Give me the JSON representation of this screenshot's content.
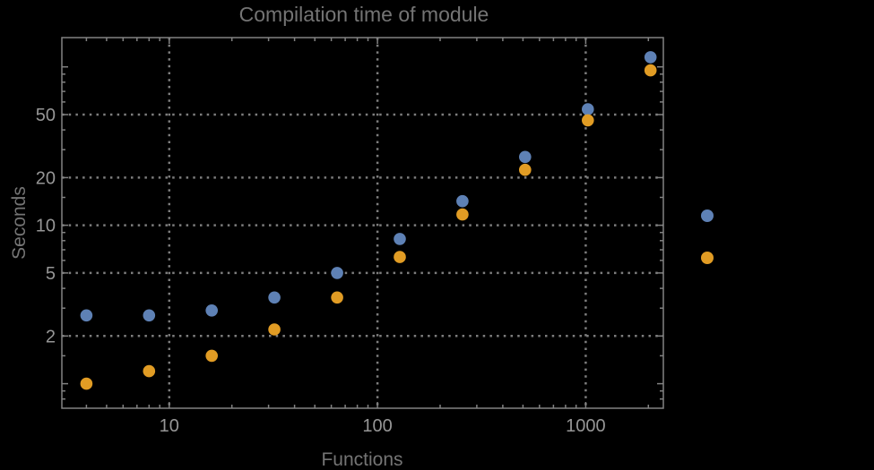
{
  "window": {
    "background": "#000000"
  },
  "chart_data": {
    "type": "scatter",
    "title": "Compilation time of module",
    "xlabel": "Functions",
    "ylabel": "Seconds",
    "x_scale": "log",
    "y_scale": "log",
    "xlim": [
      3.05,
      2360
    ],
    "ylim": [
      0.7,
      153
    ],
    "grid": true,
    "grid_style": "dotted",
    "x_gridlines": [
      10,
      100,
      1000
    ],
    "y_gridlines": [
      50,
      20,
      10,
      5,
      2
    ],
    "x_ticks": [
      {
        "value": 10,
        "label": "10"
      },
      {
        "value": 100,
        "label": "100"
      },
      {
        "value": 1000,
        "label": "1000"
      }
    ],
    "x_minor_ticks": [
      4,
      5,
      6,
      7,
      8,
      9,
      20,
      30,
      40,
      50,
      60,
      70,
      80,
      90,
      200,
      300,
      400,
      500,
      600,
      700,
      800,
      900,
      2000
    ],
    "y_ticks": [
      {
        "value": 100,
        "label": ""
      },
      {
        "value": 50,
        "label": "50"
      },
      {
        "value": 20,
        "label": "20"
      },
      {
        "value": 10,
        "label": "10"
      },
      {
        "value": 5,
        "label": "5"
      },
      {
        "value": 2,
        "label": "2"
      },
      {
        "value": 1,
        "label": ""
      }
    ],
    "y_minor_ticks": [
      0.8,
      0.9,
      1.5,
      3,
      4,
      6,
      7,
      8,
      9,
      15,
      30,
      40,
      60,
      70,
      80,
      90
    ],
    "series": [
      {
        "name": "series-1",
        "color": "#5e81b5",
        "marker": "circle",
        "points": [
          [
            4,
            2.7
          ],
          [
            8,
            2.7
          ],
          [
            16,
            2.9
          ],
          [
            32,
            3.5
          ],
          [
            64,
            5.0
          ],
          [
            128,
            8.2
          ],
          [
            256,
            14.2
          ],
          [
            512,
            27
          ],
          [
            1024,
            54
          ],
          [
            2048,
            115
          ]
        ]
      },
      {
        "name": "series-2",
        "color": "#e19c24",
        "marker": "circle",
        "points": [
          [
            4,
            1.0
          ],
          [
            8,
            1.2
          ],
          [
            16,
            1.5
          ],
          [
            32,
            2.2
          ],
          [
            64,
            3.5
          ],
          [
            128,
            6.3
          ],
          [
            256,
            11.7
          ],
          [
            512,
            22.4
          ],
          [
            1024,
            46
          ],
          [
            2048,
            95
          ]
        ]
      }
    ],
    "legend": {
      "position": "right-outside",
      "markers": [
        {
          "series": "series-1",
          "color": "#5e81b5"
        },
        {
          "series": "series-2",
          "color": "#e19c24"
        }
      ]
    },
    "colors": {
      "background": "#000000",
      "frame": "#828282",
      "grid": "#7d7d7d",
      "tick_label": "#969696",
      "text": "#747474"
    }
  }
}
